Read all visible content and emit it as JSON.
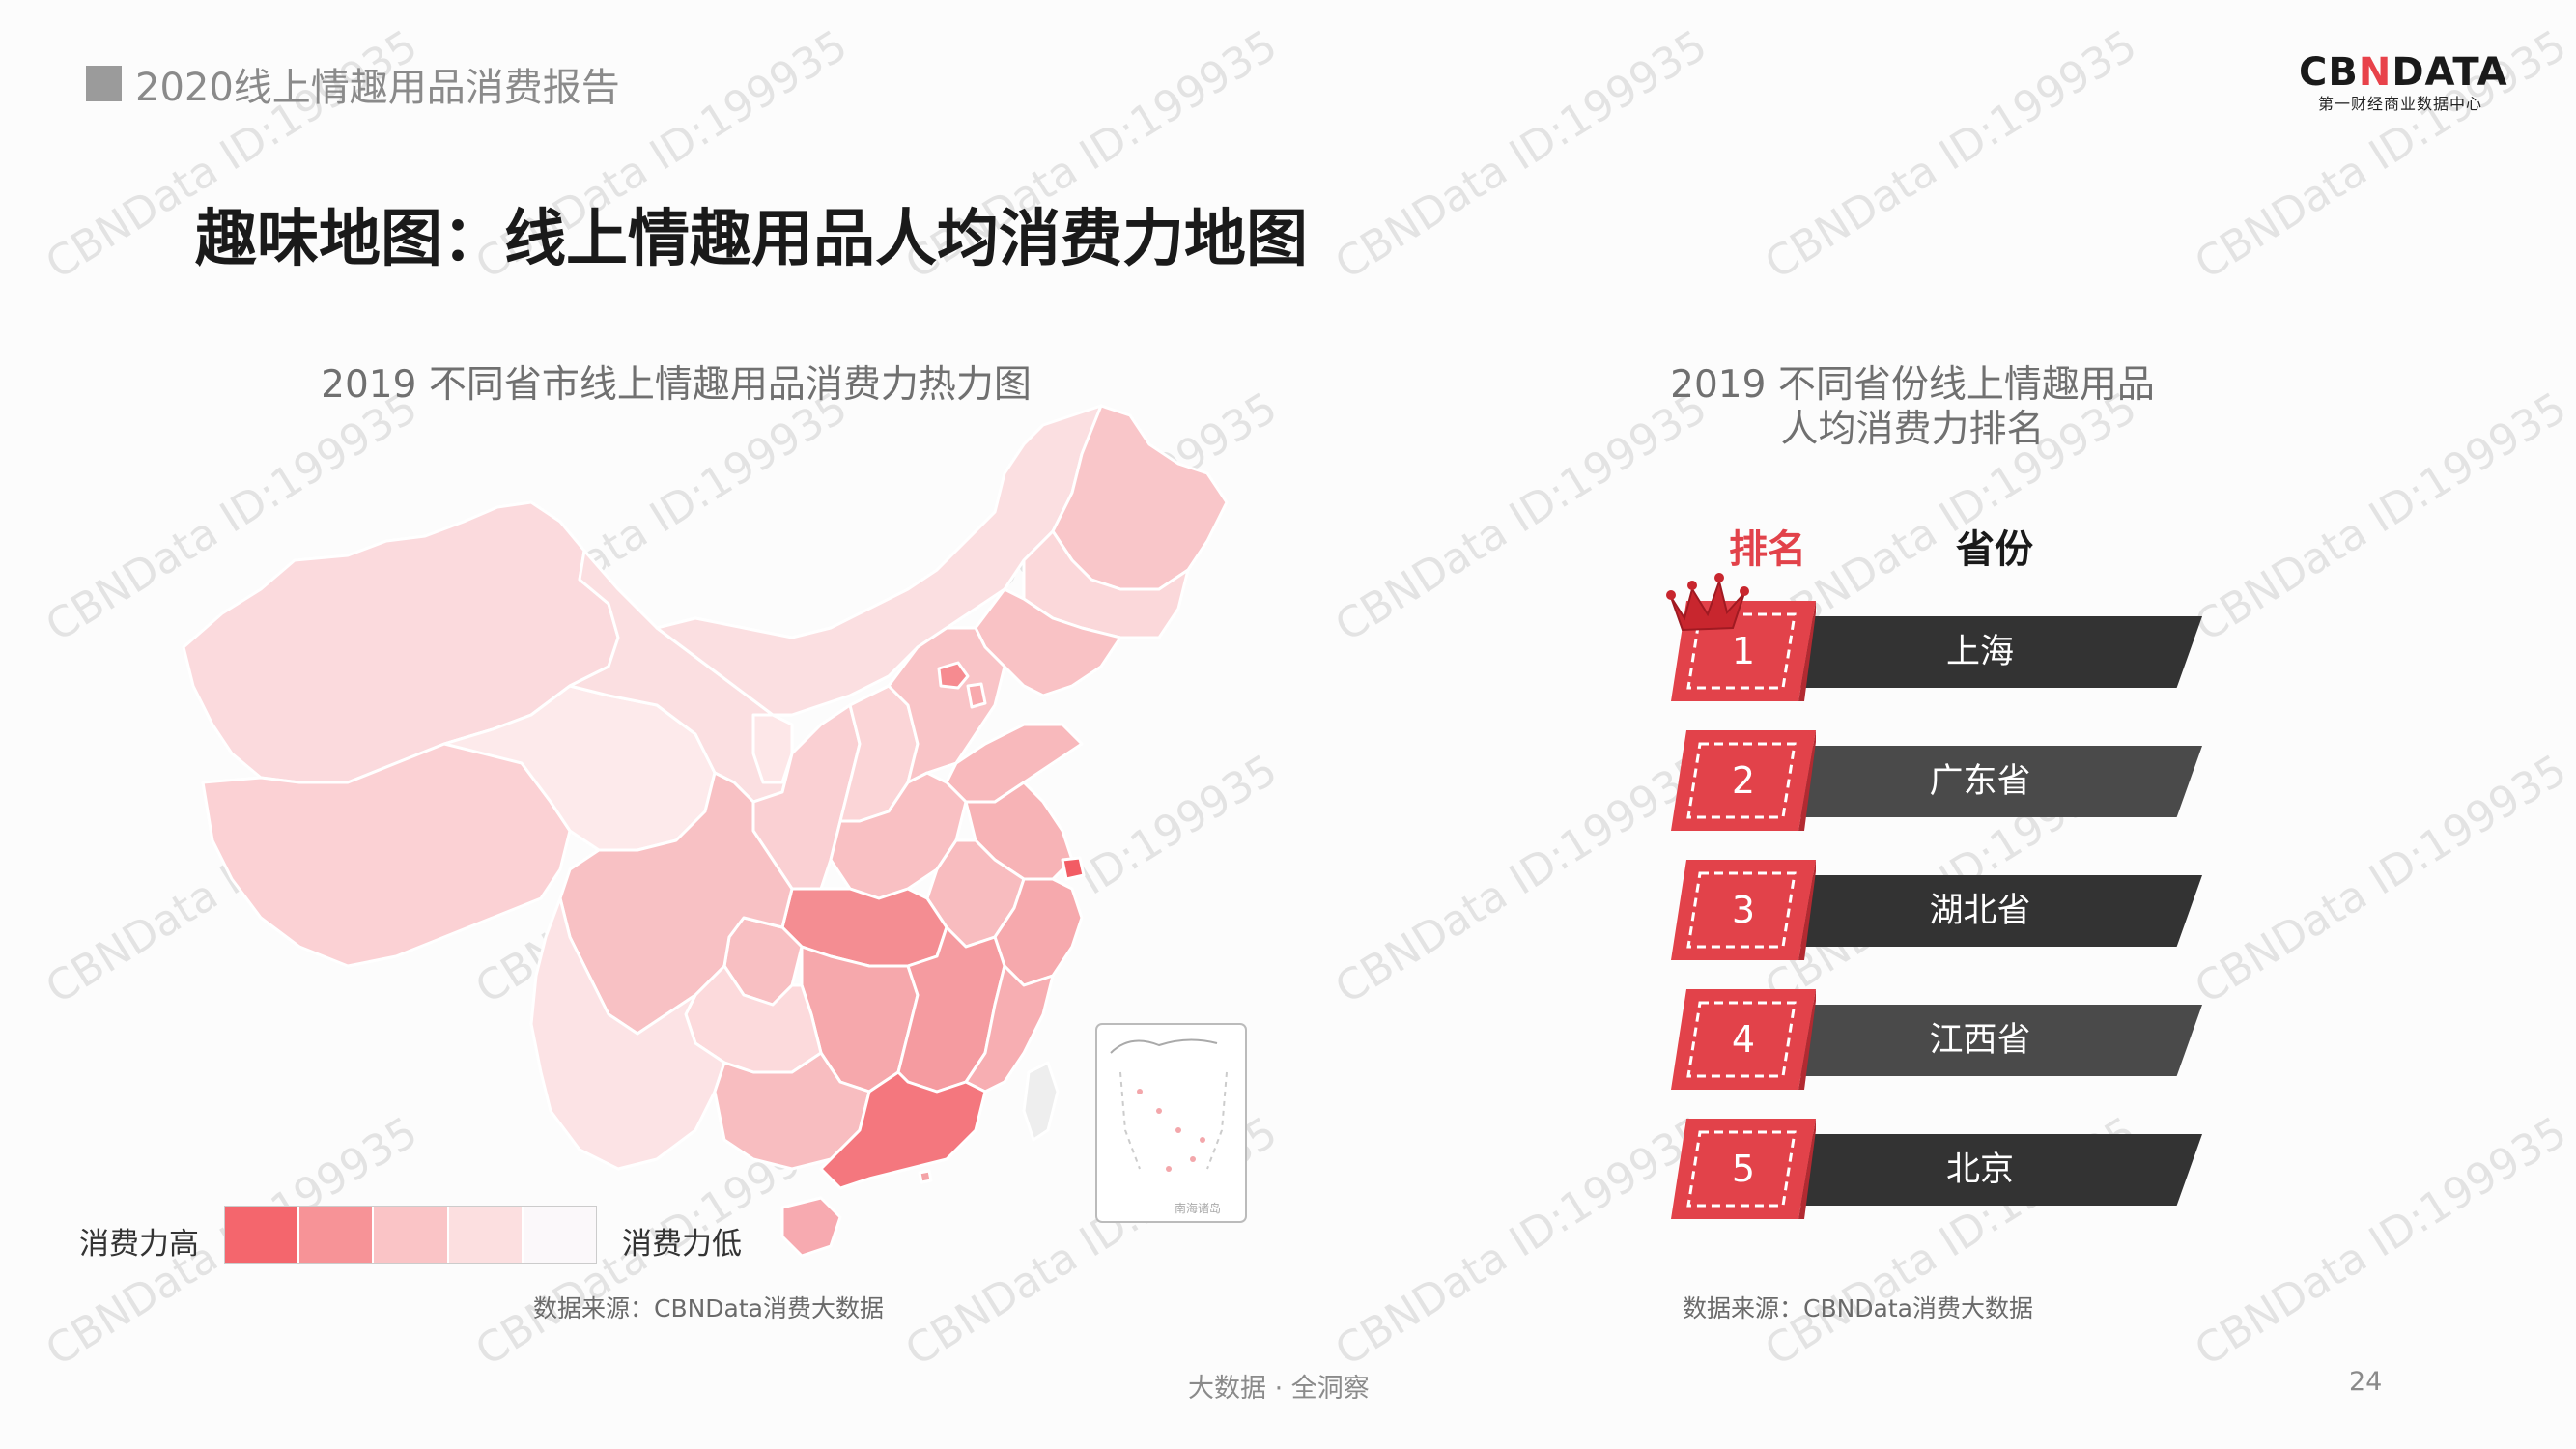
{
  "header": {
    "report_title": "2020线上情趣用品消费报告"
  },
  "logo": {
    "name_prefix": "CB",
    "name_x": "N",
    "name_suffix": "DATA",
    "tagline": "第一财经商业数据中心"
  },
  "page_heading": "趣味地图：线上情趣用品人均消费力地图",
  "map_panel": {
    "title": "2019 不同省市线上情趣用品消费力热力图",
    "legend_high": "消费力高",
    "legend_low": "消费力低",
    "legend_colors": [
      "#f4666d",
      "#f79397",
      "#fac4c6",
      "#fcdfe0",
      "#fbf8fa"
    ],
    "inset_labels": [
      "南海诸岛"
    ],
    "source": "数据来源：CBNData消费大数据"
  },
  "ranking_panel": {
    "title_line1": "2019 不同省份线上情趣用品",
    "title_line2": "人均消费力排名",
    "header_rank": "排名",
    "header_province": "省份",
    "rows": [
      {
        "rank": "1",
        "province": "上海"
      },
      {
        "rank": "2",
        "province": "广东省"
      },
      {
        "rank": "3",
        "province": "湖北省"
      },
      {
        "rank": "4",
        "province": "江西省"
      },
      {
        "rank": "5",
        "province": "北京"
      }
    ],
    "source": "数据来源：CBNData消费大数据"
  },
  "footer": {
    "slogan": "大数据 · 全洞察",
    "page_number": "24"
  },
  "watermark_text": "CBNData ID:199935",
  "colors": {
    "accent_red": "#e2424a",
    "crown": "#c8262e",
    "bar_dark": "#333333",
    "bar_mid": "#4a4a4a"
  }
}
